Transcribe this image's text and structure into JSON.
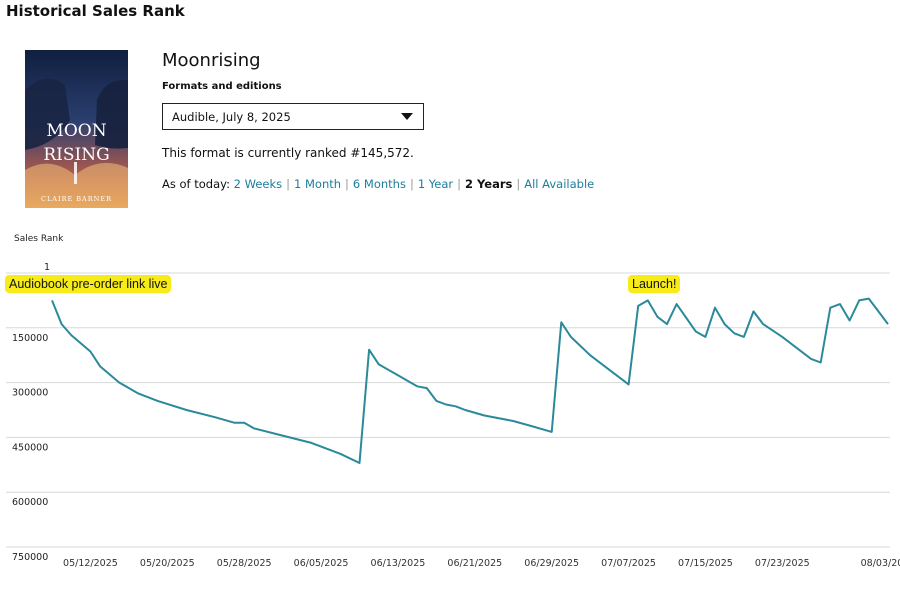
{
  "page": {
    "title": "Historical Sales Rank"
  },
  "book": {
    "cover_title_line1": "MOON",
    "cover_title_line2": "RISING",
    "cover_author": "CLAIRE BARNER",
    "title": "Moonrising"
  },
  "formats": {
    "label": "Formats and editions",
    "selected": "Audible, July 8, 2025"
  },
  "rank_text": "This format is currently ranked #145,572.",
  "ranges": {
    "prefix": "As of today:",
    "items": [
      "2 Weeks",
      "1 Month",
      "6 Months",
      "1 Year",
      "2 Years",
      "All Available"
    ],
    "active": "2 Years"
  },
  "colors": {
    "line": "#2a8a9a",
    "link": "#1b7e9c",
    "annotation": "#f7ec1a"
  },
  "chart_data": {
    "type": "line",
    "ylabel": "Sales Rank",
    "y_reversed": true,
    "y_ticks": [
      "1",
      "150000",
      "300000",
      "450000",
      "600000",
      "750000"
    ],
    "y_tick_values": [
      1,
      150000,
      300000,
      450000,
      600000,
      750000
    ],
    "ylim": [
      1,
      750000
    ],
    "xlim": [
      "2025-05-08",
      "2025-08-03"
    ],
    "x_ticks": [
      "05/12/2025",
      "05/20/2025",
      "05/28/2025",
      "06/05/2025",
      "06/13/2025",
      "06/21/2025",
      "06/29/2025",
      "07/07/2025",
      "07/15/2025",
      "07/23/2025",
      "08/03/2025"
    ],
    "x_tick_dates": [
      "2025-05-12",
      "2025-05-20",
      "2025-05-28",
      "2025-06-05",
      "2025-06-13",
      "2025-06-21",
      "2025-06-29",
      "2025-07-07",
      "2025-07-15",
      "2025-07-23",
      "2025-08-03"
    ],
    "grid": true,
    "series": [
      {
        "points": [
          [
            "2025-05-08",
            75000
          ],
          [
            "2025-05-09",
            140000
          ],
          [
            "2025-05-10",
            170000
          ],
          [
            "2025-05-12",
            215000
          ],
          [
            "2025-05-13",
            255000
          ],
          [
            "2025-05-15",
            300000
          ],
          [
            "2025-05-17",
            330000
          ],
          [
            "2025-05-19",
            350000
          ],
          [
            "2025-05-22",
            375000
          ],
          [
            "2025-05-25",
            395000
          ],
          [
            "2025-05-27",
            410000
          ],
          [
            "2025-05-28",
            410000
          ],
          [
            "2025-05-29",
            425000
          ],
          [
            "2025-06-01",
            445000
          ],
          [
            "2025-06-04",
            465000
          ],
          [
            "2025-06-06",
            485000
          ],
          [
            "2025-06-07",
            495000
          ],
          [
            "2025-06-09",
            520000
          ],
          [
            "2025-06-10",
            210000
          ],
          [
            "2025-06-11",
            250000
          ],
          [
            "2025-06-13",
            280000
          ],
          [
            "2025-06-14",
            295000
          ],
          [
            "2025-06-15",
            310000
          ],
          [
            "2025-06-16",
            315000
          ],
          [
            "2025-06-17",
            350000
          ],
          [
            "2025-06-18",
            360000
          ],
          [
            "2025-06-19",
            365000
          ],
          [
            "2025-06-20",
            375000
          ],
          [
            "2025-06-22",
            390000
          ],
          [
            "2025-06-25",
            405000
          ],
          [
            "2025-06-27",
            420000
          ],
          [
            "2025-06-29",
            435000
          ],
          [
            "2025-06-30",
            135000
          ],
          [
            "2025-07-01",
            175000
          ],
          [
            "2025-07-03",
            225000
          ],
          [
            "2025-07-05",
            265000
          ],
          [
            "2025-07-07",
            305000
          ],
          [
            "2025-07-08",
            90000
          ],
          [
            "2025-07-09",
            75000
          ],
          [
            "2025-07-10",
            120000
          ],
          [
            "2025-07-11",
            140000
          ],
          [
            "2025-07-12",
            85000
          ],
          [
            "2025-07-14",
            160000
          ],
          [
            "2025-07-15",
            175000
          ],
          [
            "2025-07-16",
            95000
          ],
          [
            "2025-07-17",
            140000
          ],
          [
            "2025-07-18",
            165000
          ],
          [
            "2025-07-19",
            175000
          ],
          [
            "2025-07-20",
            105000
          ],
          [
            "2025-07-21",
            140000
          ],
          [
            "2025-07-23",
            175000
          ],
          [
            "2025-07-26",
            235000
          ],
          [
            "2025-07-27",
            245000
          ],
          [
            "2025-07-28",
            95000
          ],
          [
            "2025-07-29",
            85000
          ],
          [
            "2025-07-30",
            130000
          ],
          [
            "2025-07-31",
            75000
          ],
          [
            "2025-08-01",
            70000
          ],
          [
            "2025-08-03",
            140000
          ]
        ]
      }
    ],
    "annotations": [
      {
        "text": "Audiobook pre-order link live",
        "date": "2025-05-08"
      },
      {
        "text": "Launch!",
        "date": "2025-07-08"
      }
    ]
  }
}
